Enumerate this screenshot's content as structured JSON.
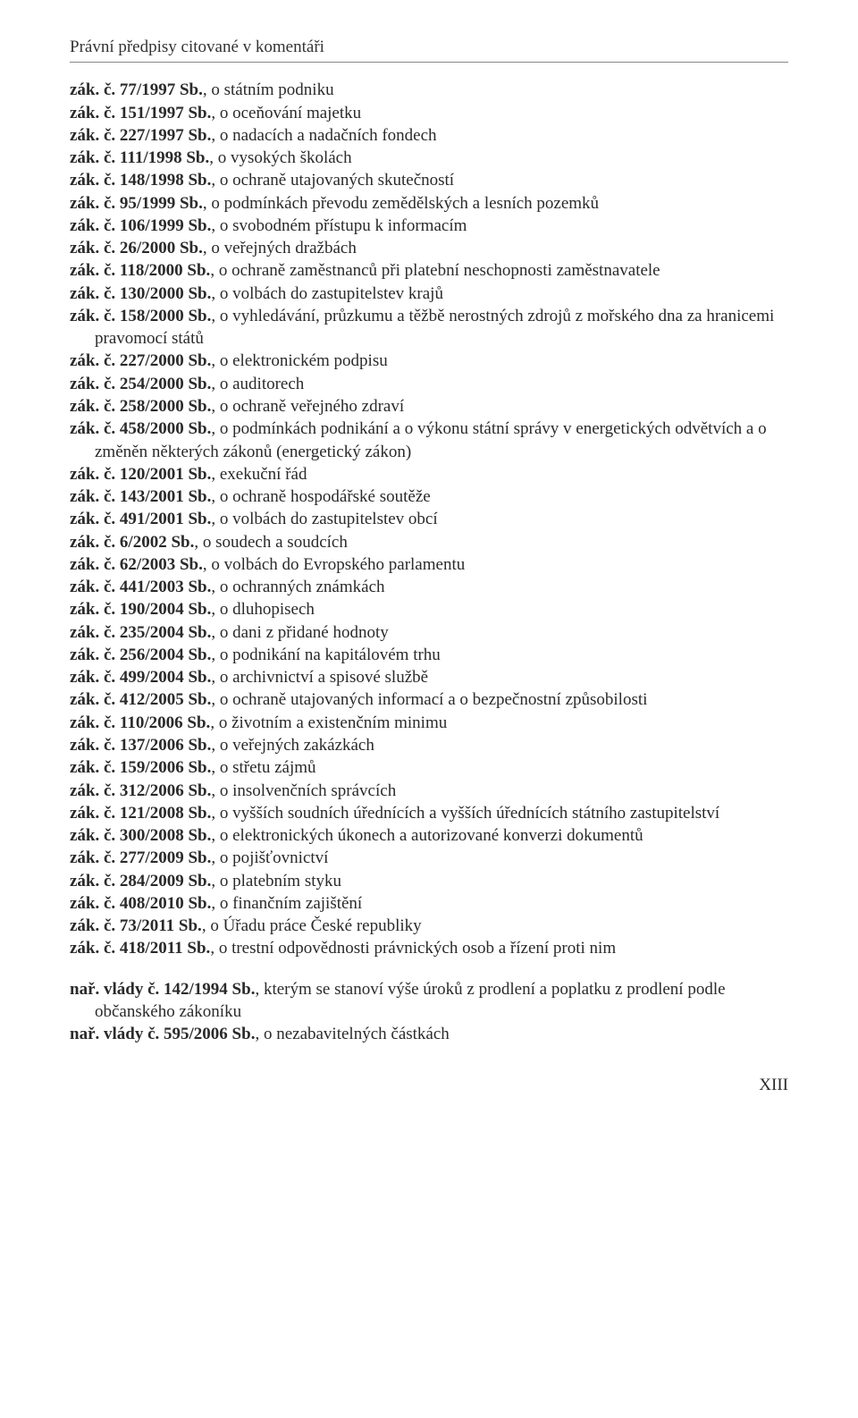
{
  "header": "Právní předpisy citované v komentáři",
  "page_number": "XIII",
  "typography": {
    "font_family": "Times New Roman",
    "body_fontsize_pt": 14,
    "line_height": 1.33,
    "text_color": "#2a2a2a",
    "background_color": "#ffffff",
    "header_border_color": "#888888"
  },
  "laws": [
    {
      "ref": "zák. č. 77/1997 Sb.",
      "desc": ", o státním podniku"
    },
    {
      "ref": "zák. č. 151/1997 Sb.",
      "desc": ", o oceňování majetku"
    },
    {
      "ref": "zák. č. 227/1997 Sb.",
      "desc": ", o nadacích a nadačních fondech"
    },
    {
      "ref": "zák. č. 111/1998 Sb.",
      "desc": ", o vysokých školách"
    },
    {
      "ref": "zák. č. 148/1998 Sb.",
      "desc": ", o ochraně utajovaných skutečností"
    },
    {
      "ref": "zák. č. 95/1999 Sb.",
      "desc": ", o podmínkách převodu zemědělských a lesních pozemků"
    },
    {
      "ref": "zák. č. 106/1999 Sb.",
      "desc": ", o svobodném přístupu k informacím"
    },
    {
      "ref": "zák. č. 26/2000 Sb.",
      "desc": ", o veřejných dražbách"
    },
    {
      "ref": "zák. č. 118/2000 Sb.",
      "desc": ", o ochraně zaměstnanců při platební neschopnosti zaměstnavatele"
    },
    {
      "ref": "zák. č. 130/2000 Sb.",
      "desc": ", o volbách do zastupitelstev krajů"
    },
    {
      "ref": "zák. č. 158/2000 Sb.",
      "desc": ", o vyhledávání, průzkumu a těžbě nerostných zdrojů z mořského dna za hranicemi pravomocí států"
    },
    {
      "ref": "zák. č. 227/2000 Sb.",
      "desc": ", o elektronickém podpisu"
    },
    {
      "ref": "zák. č. 254/2000 Sb.",
      "desc": ", o auditorech"
    },
    {
      "ref": "zák. č. 258/2000 Sb.",
      "desc": ", o ochraně veřejného zdraví"
    },
    {
      "ref": "zák. č. 458/2000 Sb.",
      "desc": ", o podmínkách podnikání a o výkonu státní správy v energetických odvětvích a o změněn některých zákonů (energetický zákon)"
    },
    {
      "ref": "zák. č. 120/2001 Sb.",
      "desc": ", exekuční řád"
    },
    {
      "ref": "zák. č. 143/2001 Sb.",
      "desc": ", o ochraně hospodářské soutěže"
    },
    {
      "ref": "zák. č. 491/2001 Sb.",
      "desc": ", o volbách do zastupitelstev obcí"
    },
    {
      "ref": "zák. č. 6/2002 Sb.",
      "desc": ", o soudech a soudcích"
    },
    {
      "ref": "zák. č. 62/2003 Sb.",
      "desc": ", o volbách do Evropského parlamentu"
    },
    {
      "ref": "zák. č. 441/2003 Sb.",
      "desc": ", o ochranných známkách"
    },
    {
      "ref": "zák. č. 190/2004 Sb.",
      "desc": ", o dluhopisech"
    },
    {
      "ref": "zák. č. 235/2004 Sb.",
      "desc": ", o dani z přidané hodnoty"
    },
    {
      "ref": "zák. č. 256/2004 Sb.",
      "desc": ", o podnikání na kapitálovém trhu"
    },
    {
      "ref": "zák. č. 499/2004 Sb.",
      "desc": ", o archivnictví a spisové službě"
    },
    {
      "ref": "zák. č. 412/2005 Sb.",
      "desc": ", o ochraně utajovaných informací a o bezpečnostní způsobilosti"
    },
    {
      "ref": "zák. č. 110/2006 Sb.",
      "desc": ", o životním a existenčním minimu"
    },
    {
      "ref": "zák. č. 137/2006 Sb.",
      "desc": ", o veřejných zakázkách"
    },
    {
      "ref": "zák. č. 159/2006 Sb.",
      "desc": ", o střetu zájmů"
    },
    {
      "ref": "zák. č. 312/2006 Sb.",
      "desc": ", o insolvenčních správcích"
    },
    {
      "ref": "zák. č. 121/2008 Sb.",
      "desc": ", o vyšších soudních úřednících a vyšších úřednících státního zastupitelství"
    },
    {
      "ref": "zák. č. 300/2008 Sb.",
      "desc": ", o elektronických úkonech a autorizované konverzi dokumentů"
    },
    {
      "ref": "zák. č. 277/2009 Sb.",
      "desc": ", o pojišťovnictví"
    },
    {
      "ref": "zák. č. 284/2009 Sb.",
      "desc": ", o platebním styku"
    },
    {
      "ref": "zák. č. 408/2010 Sb.",
      "desc": ", o finančním zajištění"
    },
    {
      "ref": "zák. č. 73/2011 Sb.",
      "desc": ", o Úřadu práce České republiky"
    },
    {
      "ref": "zák. č. 418/2011 Sb.",
      "desc": ", o trestní odpovědnosti právnických osob a řízení proti nim"
    }
  ],
  "decrees": [
    {
      "ref": "nař. vlády č. 142/1994 Sb.",
      "desc": ", kterým se stanoví výše úroků z prodlení a poplatku z prodlení podle občanského zákoníku"
    },
    {
      "ref": "nař. vlády č. 595/2006 Sb.",
      "desc": ", o nezabavitelných částkách"
    }
  ]
}
